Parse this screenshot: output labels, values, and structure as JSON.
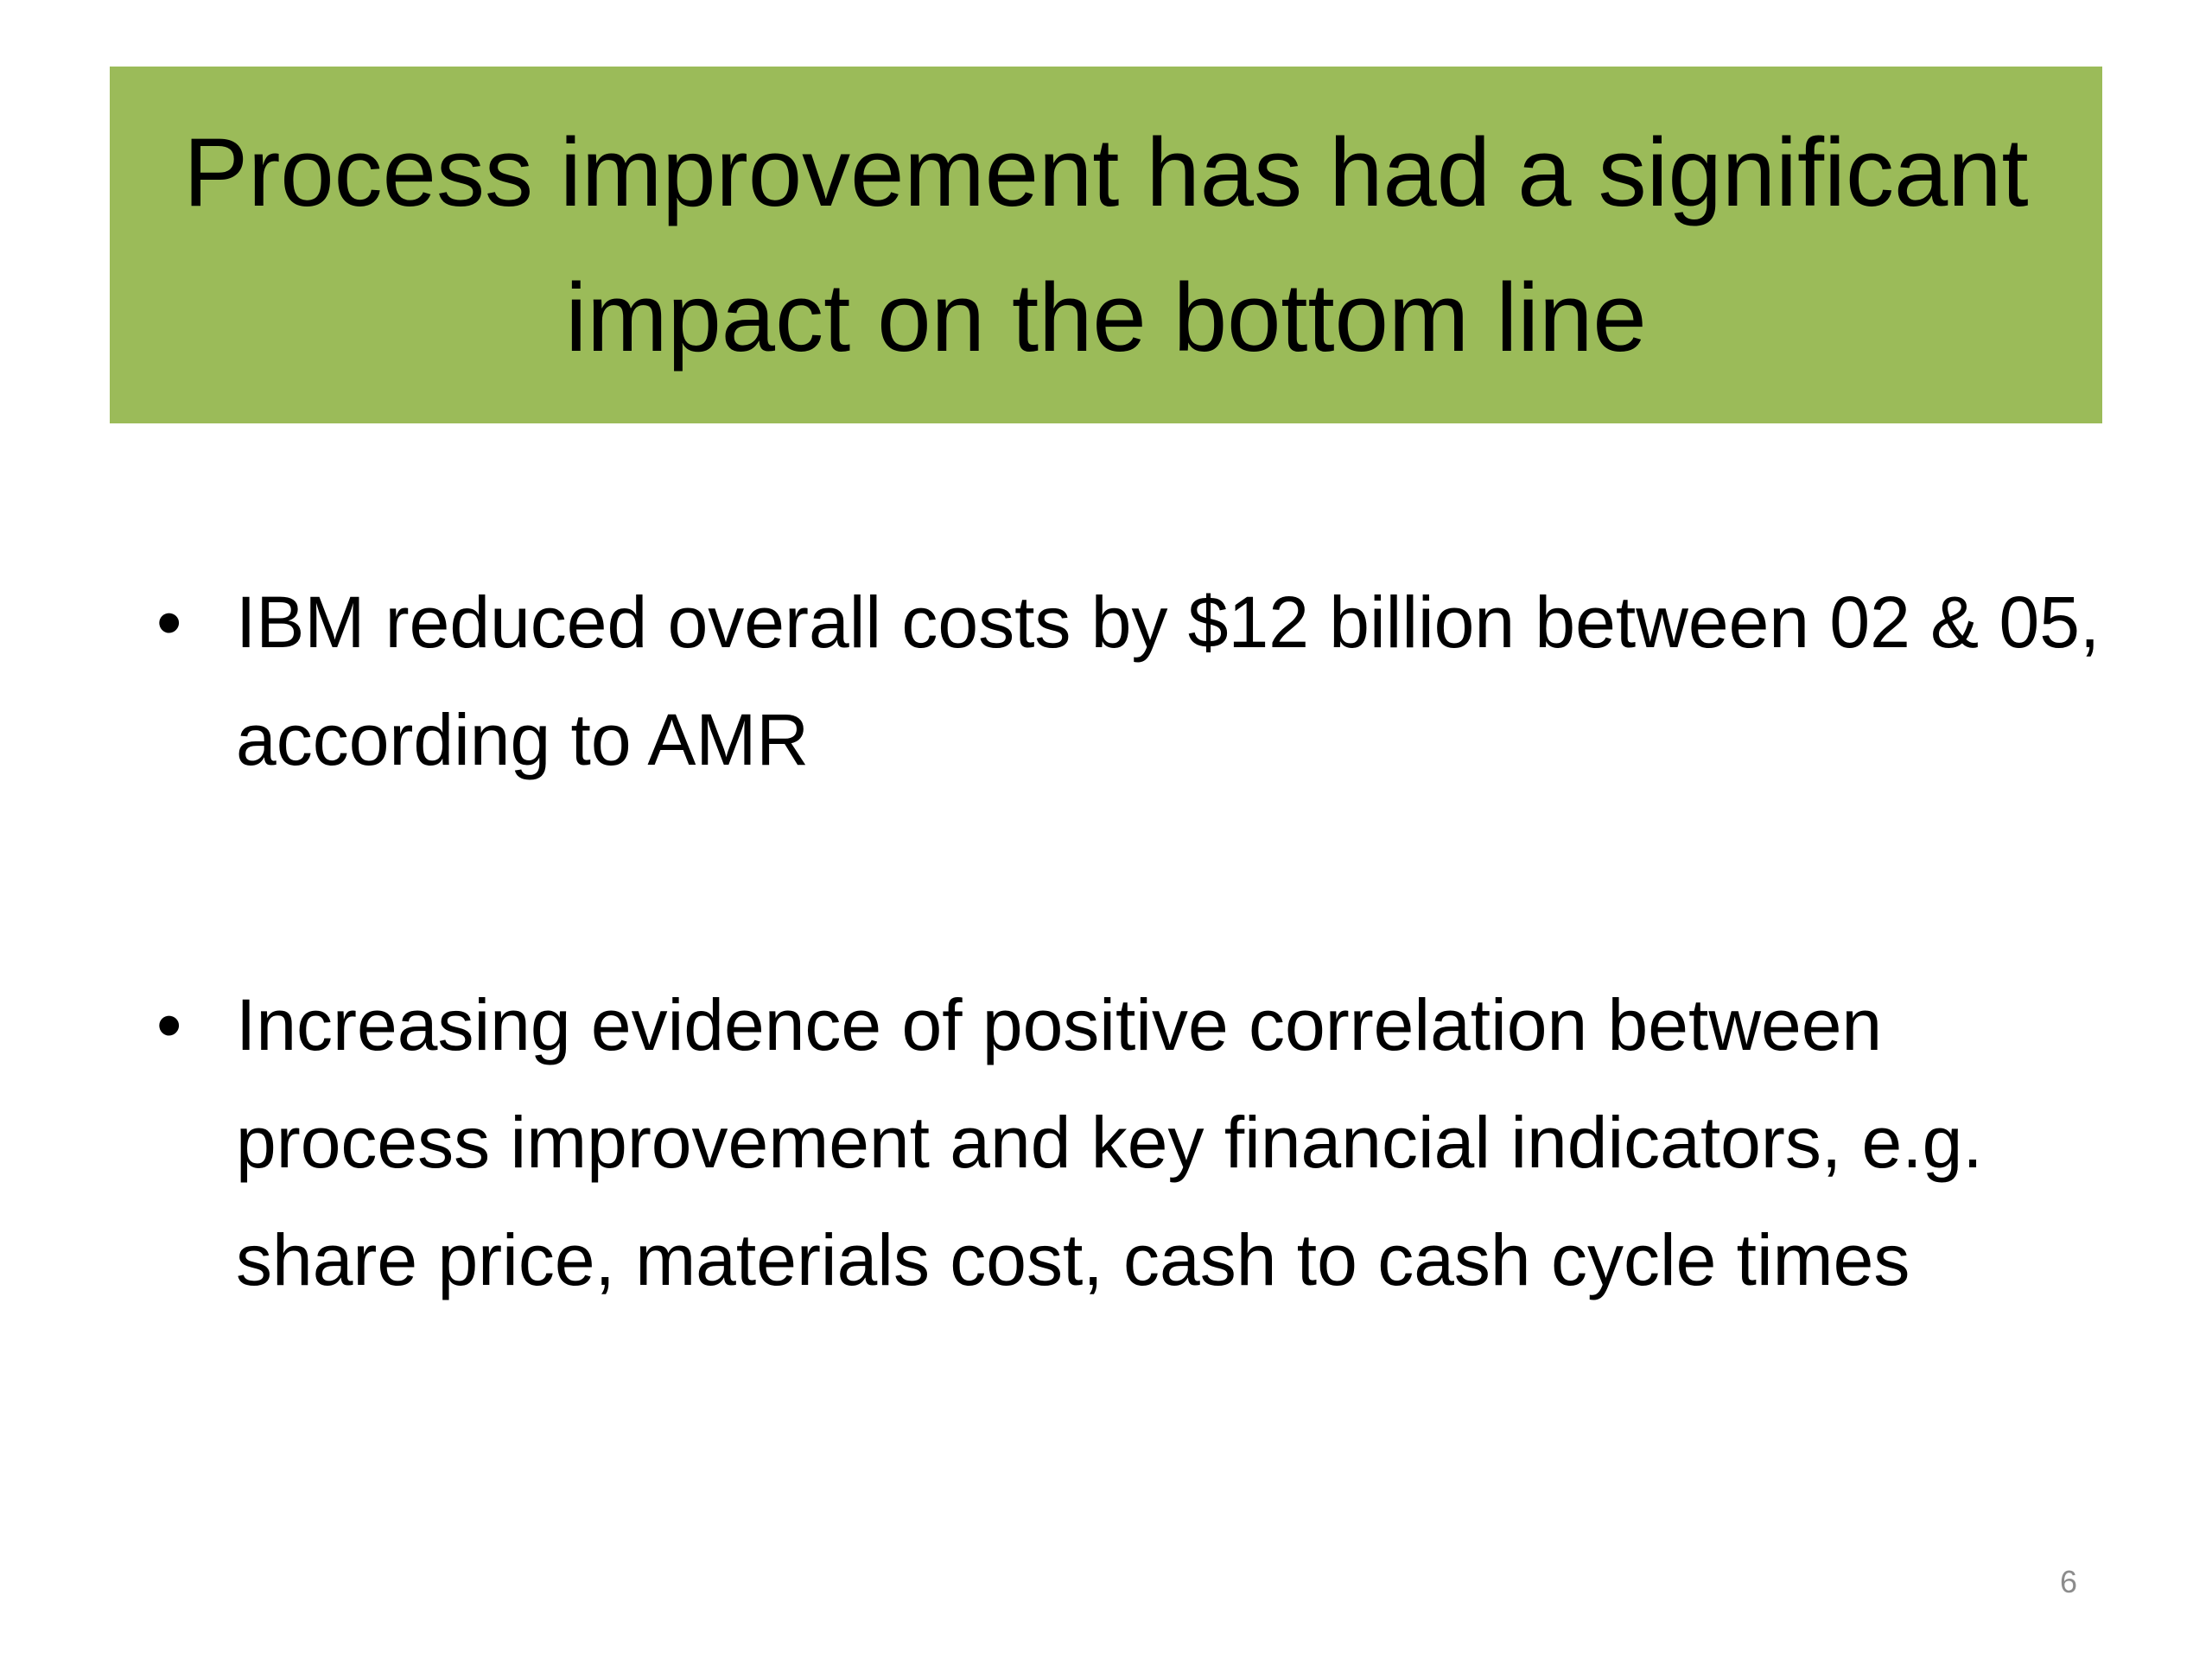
{
  "header": {
    "title": "Process improvement has had a significant  impact on the bottom line"
  },
  "bullets": [
    "IBM reduced overall costs by $12 billion between 02 & 05, according to AMR",
    "Increasing evidence of positive correlation between process improvement and key financial indicators, e.g. share price, materials cost, cash to cash cycle times"
  ],
  "footer": {
    "page_number": "6"
  }
}
